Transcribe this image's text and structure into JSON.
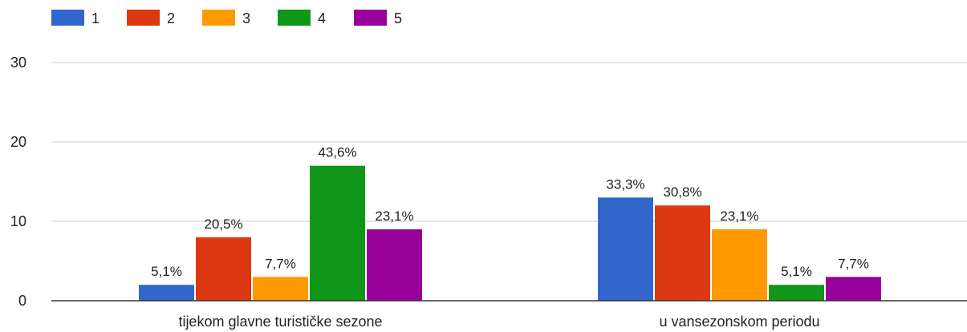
{
  "chart_data": {
    "type": "bar",
    "categories": [
      "tijekom glavne turističke sezone",
      "u vansezonskom periodu"
    ],
    "series": [
      {
        "name": "1",
        "color": "#3366cc",
        "values": [
          2,
          13
        ],
        "labels": [
          "5,1%",
          "33,3%"
        ]
      },
      {
        "name": "2",
        "color": "#dc3912",
        "values": [
          8,
          12
        ],
        "labels": [
          "20,5%",
          "30,8%"
        ]
      },
      {
        "name": "3",
        "color": "#ff9900",
        "values": [
          3,
          9
        ],
        "labels": [
          "7,7%",
          "23,1%"
        ]
      },
      {
        "name": "4",
        "color": "#109618",
        "values": [
          17,
          2
        ],
        "labels": [
          "43,6%",
          "5,1%"
        ]
      },
      {
        "name": "5",
        "color": "#990099",
        "values": [
          9,
          3
        ],
        "labels": [
          "23,1%",
          "7,7%"
        ]
      }
    ],
    "yticks": [
      0,
      10,
      20,
      30
    ],
    "ylim": [
      0,
      34
    ],
    "grid": true,
    "legend_position": "top-left"
  }
}
